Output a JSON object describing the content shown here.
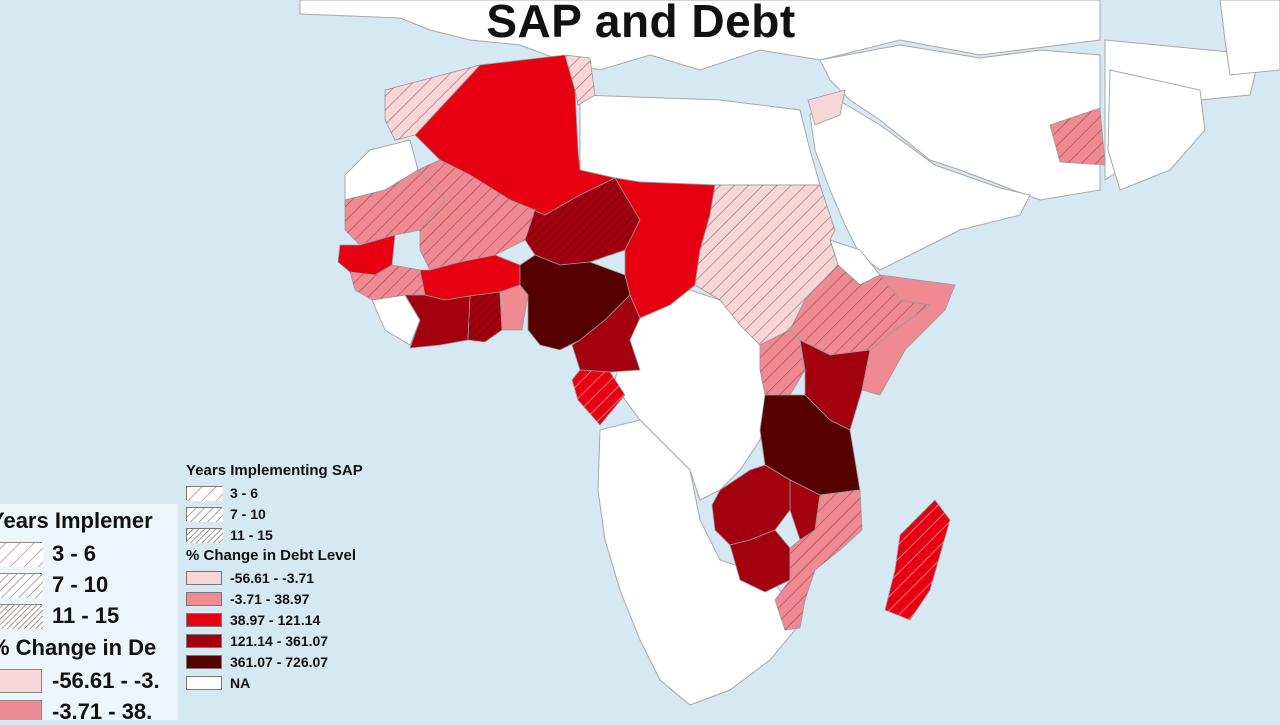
{
  "title": "SAP and Debt",
  "legend": {
    "years_heading": "Years Implementing SAP",
    "years": [
      {
        "label": "3 - 6",
        "pattern": "sparse"
      },
      {
        "label": "7 - 10",
        "pattern": "medium"
      },
      {
        "label": "11 - 15",
        "pattern": "dense"
      }
    ],
    "debt_heading": "% Change in Debt Level",
    "debt": [
      {
        "label": "-56.61 - -3.71",
        "color": "#f7d6d8"
      },
      {
        "label": "-3.71 - 38.97",
        "color": "#ef8a93"
      },
      {
        "label": "38.97 - 121.14",
        "color": "#e60012"
      },
      {
        "label": "121.14 - 361.07",
        "color": "#a30010"
      },
      {
        "label": "361.07 - 726.07",
        "color": "#560000"
      },
      {
        "label": "NA",
        "color": "#ffffff"
      }
    ]
  },
  "ghost_legend": {
    "years_heading": "Years Implemer",
    "years": [
      "3 - 6",
      "7 - 10",
      "11 - 15"
    ],
    "debt_heading": "% Change in De",
    "debt": [
      {
        "label": "-56.61 - -3.",
        "color": "#f7d6d8"
      },
      {
        "label": "-3.71 - 38.",
        "color": "#ef8a93"
      }
    ]
  },
  "colors": {
    "ocean": "#d6e9f3",
    "land_na": "#ffffff",
    "border": "#9a9a9a"
  },
  "regions": [
    {
      "name": "algeria",
      "debt_class": 2,
      "sap": "none"
    },
    {
      "name": "morocco",
      "debt_class": 0,
      "sap": "sparse"
    },
    {
      "name": "tunisia",
      "debt_class": 0,
      "sap": "sparse"
    },
    {
      "name": "mauritania",
      "debt_class": 1,
      "sap": "sparse"
    },
    {
      "name": "mali",
      "debt_class": 1,
      "sap": "sparse"
    },
    {
      "name": "niger",
      "debt_class": 3,
      "sap": "medium"
    },
    {
      "name": "chad",
      "debt_class": 2,
      "sap": "none"
    },
    {
      "name": "sudan",
      "debt_class": 0,
      "sap": "sparse"
    },
    {
      "name": "senegal",
      "debt_class": 2,
      "sap": "none"
    },
    {
      "name": "guinea",
      "debt_class": 1,
      "sap": "sparse"
    },
    {
      "name": "burkina-faso",
      "debt_class": 2,
      "sap": "none"
    },
    {
      "name": "ivory-coast",
      "debt_class": 3,
      "sap": "none"
    },
    {
      "name": "ghana",
      "debt_class": 3,
      "sap": "medium"
    },
    {
      "name": "togo-benin",
      "debt_class": 1,
      "sap": "none"
    },
    {
      "name": "nigeria",
      "debt_class": 4,
      "sap": "none"
    },
    {
      "name": "cameroon",
      "debt_class": 3,
      "sap": "none"
    },
    {
      "name": "gabon",
      "debt_class": 2,
      "sap": "sparse"
    },
    {
      "name": "ethiopia",
      "debt_class": 1,
      "sap": "sparse"
    },
    {
      "name": "somalia",
      "debt_class": 1,
      "sap": "none"
    },
    {
      "name": "uganda",
      "debt_class": 1,
      "sap": "sparse"
    },
    {
      "name": "kenya",
      "debt_class": 3,
      "sap": "none"
    },
    {
      "name": "tanzania",
      "debt_class": 4,
      "sap": "none"
    },
    {
      "name": "malawi",
      "debt_class": 3,
      "sap": "none"
    },
    {
      "name": "zambia",
      "debt_class": 3,
      "sap": "none"
    },
    {
      "name": "zimbabwe",
      "debt_class": 3,
      "sap": "none"
    },
    {
      "name": "mozambique",
      "debt_class": 1,
      "sap": "sparse"
    },
    {
      "name": "madagascar",
      "debt_class": 2,
      "sap": "sparse"
    },
    {
      "name": "jordan",
      "debt_class": 0,
      "sap": "none"
    },
    {
      "name": "pakistan",
      "debt_class": 1,
      "sap": "sparse"
    }
  ]
}
